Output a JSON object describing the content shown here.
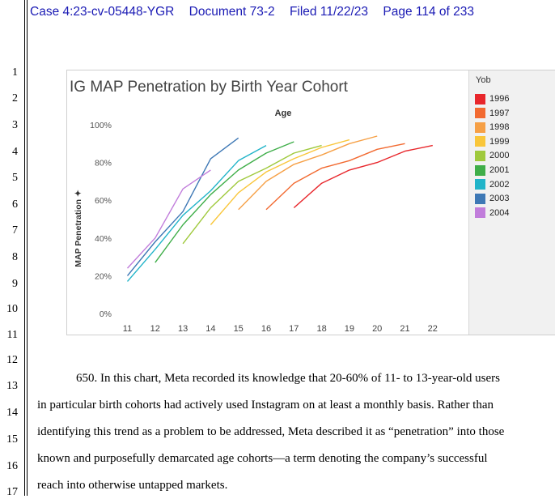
{
  "header": {
    "case": "Case 4:23-cv-05448-YGR",
    "document": "Document 73-2",
    "filed": "Filed 11/22/23",
    "page": "Page 114 of 233"
  },
  "line_numbers": [
    "1",
    "2",
    "3",
    "4",
    "5",
    "6",
    "7",
    "8",
    "9",
    "10",
    "11",
    "12",
    "13",
    "14",
    "15",
    "16",
    "17"
  ],
  "chart_data": {
    "type": "line",
    "title": "IG MAP Penetration by Birth Year Cohort",
    "xlabel": "Age",
    "ylabel": "MAP Penetration",
    "x_ticks": [
      "11",
      "12",
      "13",
      "14",
      "15",
      "16",
      "17",
      "18",
      "19",
      "20",
      "21",
      "22"
    ],
    "y_ticks": [
      "0%",
      "20%",
      "40%",
      "60%",
      "80%",
      "100%"
    ],
    "xlim": [
      10.5,
      22.5
    ],
    "ylim": [
      0,
      100
    ],
    "legend_title": "Yob",
    "legend_position": "right",
    "series": [
      {
        "name": "1996",
        "color": "#e8262b",
        "x": [
          17,
          18,
          19,
          20,
          21,
          22
        ],
        "y": [
          56,
          69,
          76,
          80,
          86,
          89
        ]
      },
      {
        "name": "1997",
        "color": "#f26a31",
        "x": [
          16,
          17,
          18,
          19,
          20,
          21
        ],
        "y": [
          55,
          69,
          77,
          81,
          87,
          90
        ]
      },
      {
        "name": "1998",
        "color": "#f6a046",
        "x": [
          15,
          16,
          17,
          18,
          19,
          20
        ],
        "y": [
          55,
          70,
          79,
          84,
          90,
          94
        ]
      },
      {
        "name": "1999",
        "color": "#f9c63a",
        "x": [
          14,
          15,
          16,
          17,
          18,
          19
        ],
        "y": [
          47,
          64,
          75,
          82,
          88,
          92
        ]
      },
      {
        "name": "2000",
        "color": "#9fc93c",
        "x": [
          13,
          14,
          15,
          16,
          17,
          18
        ],
        "y": [
          37,
          56,
          70,
          77,
          85,
          89
        ]
      },
      {
        "name": "2001",
        "color": "#3fae49",
        "x": [
          12,
          13,
          14,
          15,
          16,
          17
        ],
        "y": [
          27,
          47,
          63,
          76,
          85,
          91
        ]
      },
      {
        "name": "2002",
        "color": "#21b4c9",
        "x": [
          11,
          12,
          13,
          14,
          15,
          16
        ],
        "y": [
          17,
          34,
          52,
          65,
          81,
          89
        ]
      },
      {
        "name": "2003",
        "color": "#3e78b5",
        "x": [
          11,
          12,
          13,
          14,
          15
        ],
        "y": [
          20,
          38,
          54,
          82,
          93
        ]
      },
      {
        "name": "2004",
        "color": "#c17ddb",
        "x": [
          11,
          12,
          13,
          14
        ],
        "y": [
          24,
          40,
          66,
          76
        ]
      }
    ]
  },
  "paragraph": {
    "line13": "650.    In this chart, Meta recorded its knowledge that 20-60% of 11- to 13-year-old users",
    "line14": "in particular birth cohorts had actively used Instagram on at least a monthly basis. Rather than",
    "line15": "identifying this trend as a problem to be addressed, Meta described it as “penetration” into those",
    "line16": "known and purposefully demarcated age cohorts—a term denoting the company’s successful",
    "line17": "reach into otherwise untapped markets."
  }
}
